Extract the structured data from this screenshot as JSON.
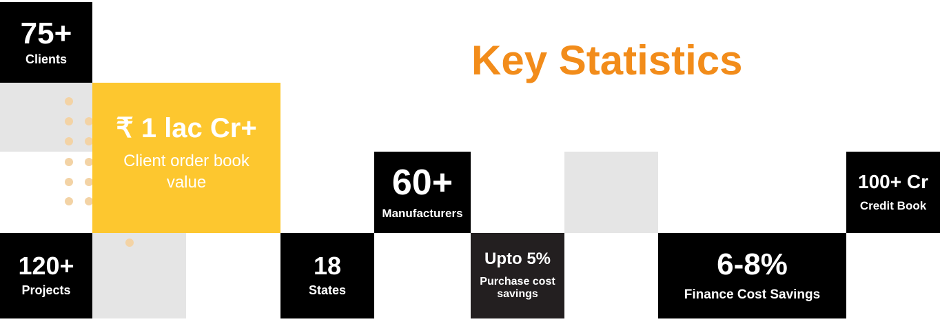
{
  "title": "Key Statistics",
  "stats": {
    "clients": {
      "value": "75+",
      "label": "Clients"
    },
    "order_book": {
      "value": "₹ 1 lac Cr+",
      "label": "Client order book value"
    },
    "manufacturers": {
      "value": "60+",
      "label": "Manufacturers"
    },
    "credit": {
      "value": "100+ Cr",
      "label": "Credit Book"
    },
    "projects": {
      "value": "120+",
      "label": "Projects"
    },
    "states": {
      "value": "18",
      "label": "States"
    },
    "purchase": {
      "value": "Upto 5%",
      "label": "Purchase cost savings"
    },
    "finance": {
      "value": "6-8%",
      "label": "Finance Cost Savings"
    }
  },
  "colors": {
    "accent": "#f28c1a",
    "yellow": "#fdc72f",
    "black": "#000000",
    "grey": "#e5e5e5",
    "dots": "#f3d3a5"
  }
}
